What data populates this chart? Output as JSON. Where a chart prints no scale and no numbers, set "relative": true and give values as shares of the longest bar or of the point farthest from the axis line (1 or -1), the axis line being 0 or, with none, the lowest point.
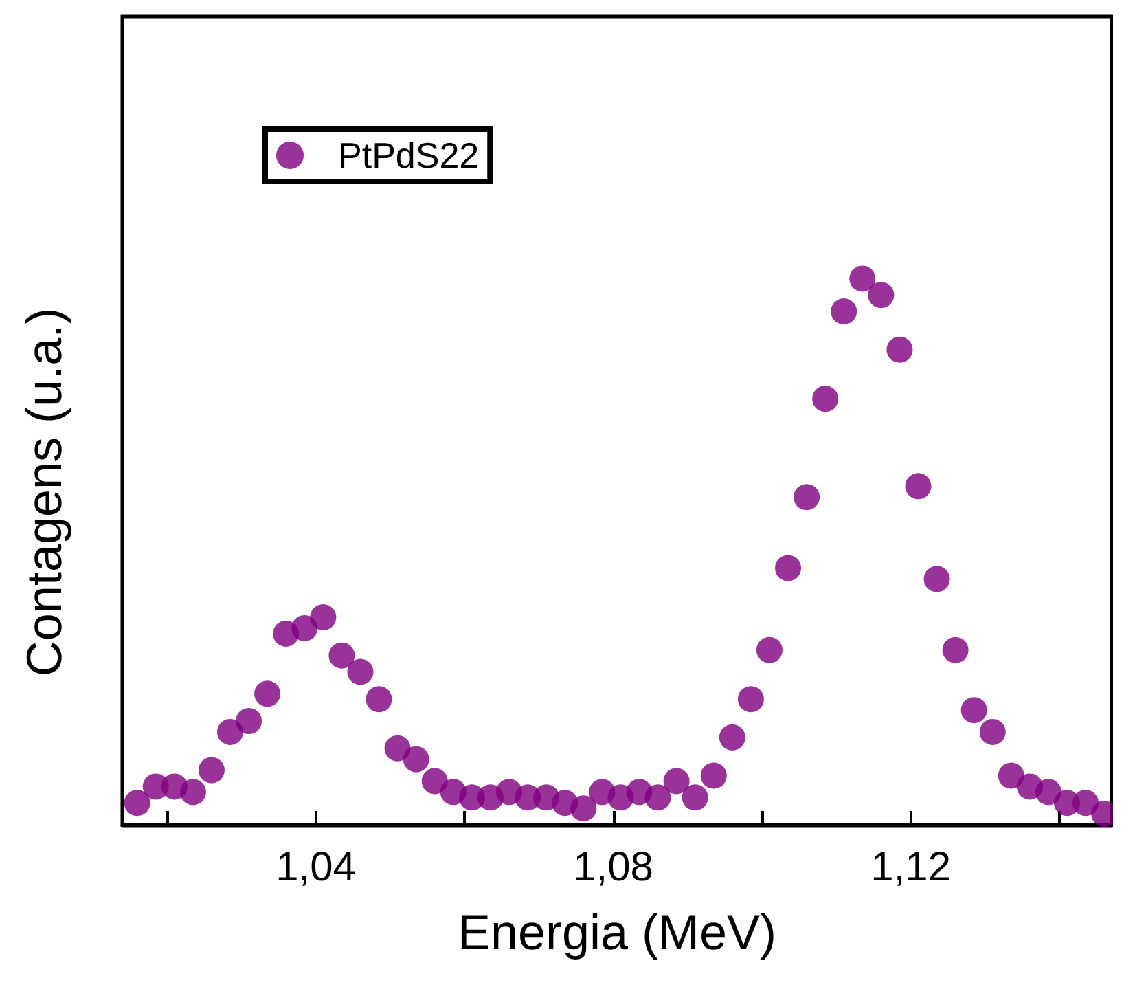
{
  "chart_data": {
    "type": "scatter",
    "xlabel": "Energia (MeV)",
    "ylabel": "Contagens (u.a.)",
    "relative": true,
    "marker": "circle",
    "legend": "top left",
    "grid": false,
    "xlim": [
      1.014,
      1.147
    ],
    "xticks": [
      {
        "value": 1.02,
        "label": null
      },
      {
        "value": 1.04,
        "label": "1,04"
      },
      {
        "value": 1.06,
        "label": null
      },
      {
        "value": 1.08,
        "label": "1,08"
      },
      {
        "value": 1.1,
        "label": null
      },
      {
        "value": 1.12,
        "label": "1,12"
      },
      {
        "value": 1.14,
        "label": null
      }
    ],
    "x": [
      1.016,
      1.0185,
      1.021,
      1.0235,
      1.026,
      1.0285,
      1.031,
      1.0335,
      1.036,
      1.0385,
      1.041,
      1.0435,
      1.046,
      1.0485,
      1.051,
      1.0535,
      1.056,
      1.0585,
      1.061,
      1.0635,
      1.066,
      1.0685,
      1.071,
      1.0735,
      1.076,
      1.0785,
      1.081,
      1.0835,
      1.086,
      1.0885,
      1.091,
      1.0935,
      1.096,
      1.0985,
      1.101,
      1.1035,
      1.106,
      1.1085,
      1.111,
      1.1135,
      1.116,
      1.1185,
      1.121,
      1.1235,
      1.126,
      1.1285,
      1.131,
      1.1335,
      1.136,
      1.1385,
      1.141,
      1.1435,
      1.146
    ],
    "series": [
      {
        "name": "PtPdS22",
        "color": "#800080",
        "values": [
          0.04,
          0.07,
          0.07,
          0.06,
          0.1,
          0.17,
          0.19,
          0.24,
          0.35,
          0.36,
          0.38,
          0.31,
          0.28,
          0.23,
          0.14,
          0.12,
          0.08,
          0.06,
          0.05,
          0.05,
          0.06,
          0.05,
          0.05,
          0.04,
          0.03,
          0.06,
          0.05,
          0.06,
          0.05,
          0.08,
          0.05,
          0.09,
          0.16,
          0.23,
          0.32,
          0.47,
          0.6,
          0.78,
          0.94,
          1,
          0.97,
          0.87,
          0.62,
          0.45,
          0.32,
          0.21,
          0.17,
          0.09,
          0.07,
          0.06,
          0.04,
          0.04,
          0.02
        ]
      }
    ]
  }
}
